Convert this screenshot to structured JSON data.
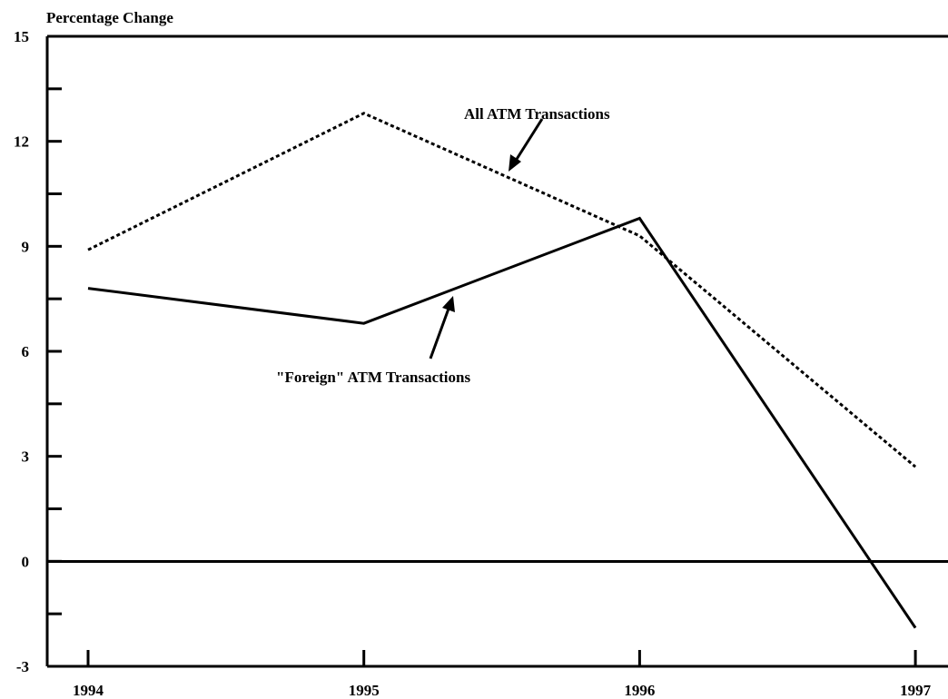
{
  "chart_data": {
    "type": "line",
    "title": "",
    "ylabel": "Percentage Change",
    "xlabel": "",
    "x": [
      "1994",
      "1995",
      "1996",
      "1997"
    ],
    "ylim": [
      -3,
      15
    ],
    "yticks": [
      "15",
      "12",
      "9",
      "6",
      "3",
      "0",
      "-3"
    ],
    "grid": false,
    "series": [
      {
        "name": "All ATM Transactions",
        "style": "dotted",
        "values": [
          8.9,
          12.8,
          9.3,
          2.7
        ]
      },
      {
        "name": "\"Foreign\" ATM Transactions",
        "style": "solid",
        "values": [
          7.8,
          6.8,
          9.8,
          -1.9
        ]
      }
    ],
    "annotations": [
      {
        "text": "All ATM Transactions",
        "series": 0
      },
      {
        "text": "\"Foreign\" ATM Transactions",
        "series": 1
      }
    ],
    "colors": {
      "line": "#000000",
      "background": "#ffffff"
    }
  }
}
